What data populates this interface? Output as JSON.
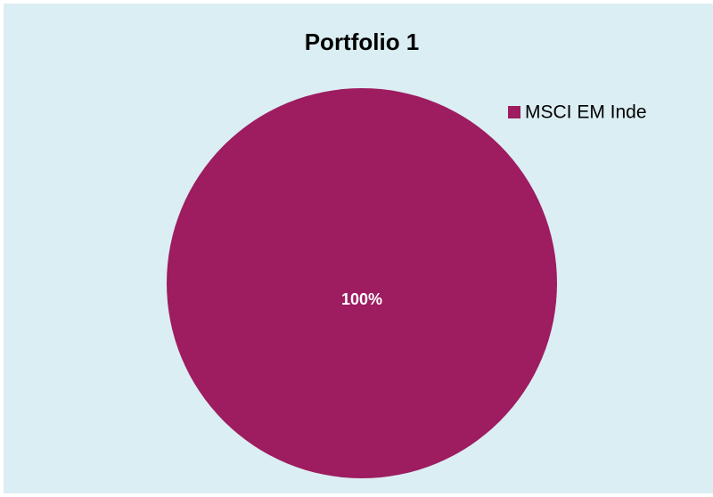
{
  "chart_data": {
    "type": "pie",
    "title": "Portfolio 1",
    "categories": [
      "MSCI EM Inde"
    ],
    "values": [
      100
    ],
    "value_labels": [
      "100%"
    ],
    "colors": [
      "#9e1c60"
    ],
    "legend": "top-right"
  }
}
